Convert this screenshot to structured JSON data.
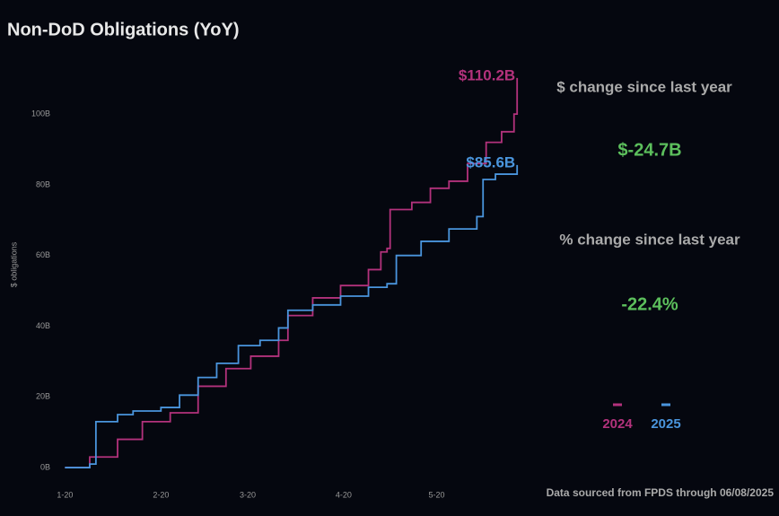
{
  "chart_data": {
    "type": "step-line",
    "title": "Non-DoD Obligations (YoY)",
    "y_label": "$ obligations",
    "xticks": [
      {
        "value": 0,
        "label": "1-20"
      },
      {
        "value": 31,
        "label": "2-20"
      },
      {
        "value": 59,
        "label": "3-20"
      },
      {
        "value": 90,
        "label": "4-20"
      },
      {
        "value": 120,
        "label": "5-20"
      }
    ],
    "xlim": [
      -3,
      150
    ],
    "ylim": [
      -1,
      115
    ],
    "yticks": [
      {
        "value": 0,
        "label": "0B"
      },
      {
        "value": 20,
        "label": "20B"
      },
      {
        "value": 40,
        "label": "40B"
      },
      {
        "value": 60,
        "label": "60B"
      },
      {
        "value": 80,
        "label": "80B"
      },
      {
        "value": 100,
        "label": "100B"
      }
    ],
    "series": [
      {
        "name": "2024",
        "color": "#b3327c",
        "x": [
          0,
          8,
          17,
          25,
          34,
          43,
          52,
          60,
          69,
          72,
          80,
          89,
          98,
          102,
          104,
          105,
          112,
          118,
          124,
          130,
          136,
          141,
          145,
          146
        ],
        "values": [
          0,
          3,
          8,
          13,
          15.5,
          23,
          28,
          31.5,
          36,
          43,
          48,
          51.5,
          56,
          61,
          62,
          73,
          75,
          79,
          81,
          86,
          92,
          95,
          100,
          110.2
        ]
      },
      {
        "name": "2025",
        "color": "#4a95dd",
        "x": [
          0,
          8,
          10,
          17,
          22,
          31,
          37,
          43,
          49,
          56,
          63,
          69,
          72,
          80,
          89,
          98,
          104,
          107,
          115,
          124,
          133,
          135,
          139,
          146
        ],
        "values": [
          0,
          1,
          13,
          15,
          16,
          17,
          20.5,
          25.5,
          29.5,
          34.5,
          36,
          39.5,
          44.5,
          46,
          48.5,
          51,
          52,
          60,
          64,
          67.5,
          71,
          81.5,
          83,
          85.6
        ]
      }
    ],
    "annotations": [
      "$110.2B",
      "$85.6B"
    ],
    "footer": "Data sourced from FPDS through 06/08/2025"
  },
  "panel": {
    "dollar_label": "$ change since last year",
    "dollar_value": "$-24.7B",
    "pct_label": "% change since last year",
    "pct_value": "-22.4%"
  }
}
